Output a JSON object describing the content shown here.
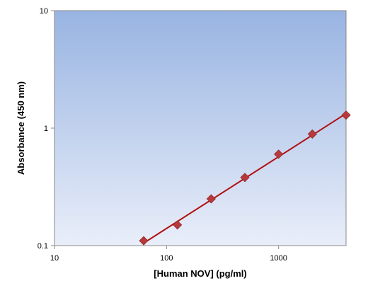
{
  "chart_data": {
    "type": "scatter",
    "title": "",
    "xlabel": "[Human NOV] (pg/ml)",
    "ylabel": "Absorbance (450 nm)",
    "xscale": "log",
    "yscale": "log",
    "xlim": [
      10,
      4000
    ],
    "ylim": [
      0.1,
      10
    ],
    "xticks": [
      "10",
      "100",
      "1000"
    ],
    "yticks": [
      "0.1",
      "1",
      "10"
    ],
    "grid": false,
    "legend": "none",
    "series": [
      {
        "marker": "diamond",
        "x": [
          62.5,
          125,
          250,
          500,
          1000,
          2000,
          4000
        ],
        "y": [
          0.11,
          0.15,
          0.25,
          0.38,
          0.6,
          0.89,
          1.29
        ]
      }
    ],
    "fit_line": {
      "x": [
        62.5,
        4000
      ],
      "y": [
        0.105,
        1.33
      ]
    },
    "colors": {
      "marker": "#b8393b",
      "line": "#b01010",
      "plot_bg_top": "#98b4e2",
      "plot_bg_bottom": "#e9eef9"
    }
  }
}
